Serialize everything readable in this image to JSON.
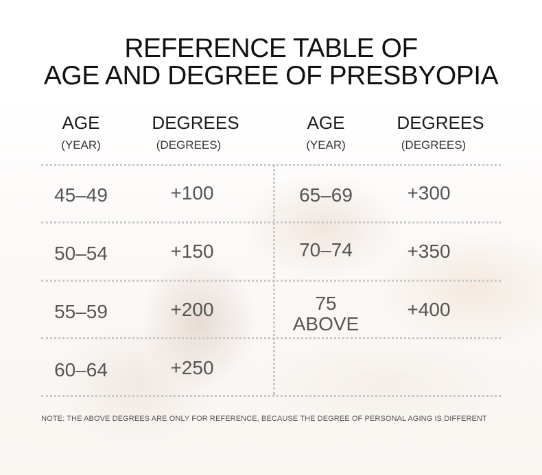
{
  "title": {
    "line1": "REFERENCE TABLE OF",
    "line2": "AGE AND DEGREE OF PRESBYOPIA"
  },
  "left_headers": {
    "age": "AGE",
    "age_unit": "(YEAR)",
    "degrees": "DEGREES",
    "degrees_unit": "(DEGREES)"
  },
  "right_headers": {
    "age": "AGE",
    "age_unit": "(YEAR)",
    "degrees": "DEGREES",
    "degrees_unit": "(DEGREES)"
  },
  "left_rows": [
    {
      "age": "45–49",
      "degree": "+100"
    },
    {
      "age": "50–54",
      "degree": "+150"
    },
    {
      "age": "55–59",
      "degree": "+200"
    },
    {
      "age": "60–64",
      "degree": "+250"
    }
  ],
  "right_rows": [
    {
      "age": "65–69",
      "degree": "+300"
    },
    {
      "age": "70–74",
      "degree": "+350"
    },
    {
      "age_line1": "75",
      "age_line2": "ABOVE",
      "degree": "+400"
    }
  ],
  "note": "NOTE: THE ABOVE DEGREES ARE ONLY FOR REFERENCE, BECAUSE THE DEGREE OF PERSONAL AGING IS DIFFERENT"
}
